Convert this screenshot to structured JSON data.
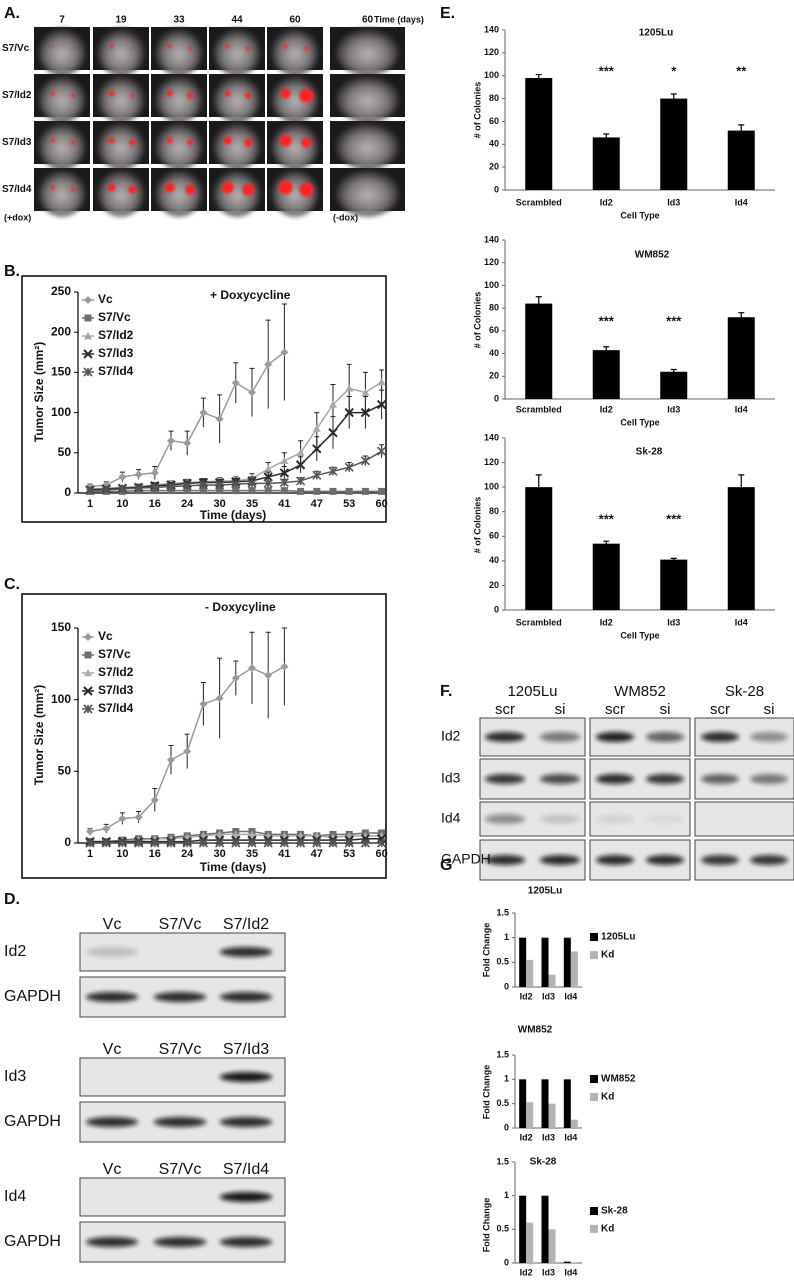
{
  "figure": {
    "panel_labels": [
      "A.",
      "B.",
      "C.",
      "D.",
      "E.",
      "F.",
      "G"
    ]
  },
  "panel_a": {
    "days": [
      "7",
      "19",
      "33",
      "44",
      "60",
      "60"
    ],
    "time_label": "Time (days)",
    "rows": [
      "S7/Vc",
      "S7/Id2",
      "S7/Id3",
      "S7/Id4"
    ],
    "plus_dox": "(+dox)",
    "minus_dox": "(-dox)"
  },
  "chart_data": [
    {
      "type": "line",
      "title": "+ Doxycycline",
      "x_label": "Time (days)",
      "y_label": "Tumor Size (mm²)",
      "categories": [
        "1",
        null,
        "10",
        null,
        "16",
        null,
        "24",
        null,
        "30",
        null,
        "35",
        null,
        "41",
        null,
        "47",
        null,
        "53",
        null,
        "60"
      ],
      "ylim": [
        0,
        250
      ],
      "yticks": [
        0,
        50,
        100,
        150,
        200,
        250
      ],
      "series": [
        {
          "name": "Vc",
          "color": "#9a9a9a",
          "marker": "diamond",
          "values": [
            8,
            10,
            20,
            23,
            25,
            65,
            62,
            100,
            92,
            137,
            125,
            160,
            175,
            null,
            null,
            null,
            null,
            null,
            null
          ],
          "errors": [
            3,
            4,
            6,
            6,
            8,
            12,
            15,
            18,
            30,
            25,
            30,
            55,
            60,
            null,
            null,
            null,
            null,
            null,
            null
          ]
        },
        {
          "name": "S7/Vc",
          "color": "#6e6e6e",
          "marker": "square",
          "values": [
            2,
            2,
            2,
            3,
            3,
            3,
            3,
            3,
            3,
            3,
            3,
            3,
            3,
            2,
            2,
            2,
            2,
            2,
            2
          ]
        },
        {
          "name": "S7/Id2",
          "color": "#a8a8a8",
          "marker": "triangle",
          "values": [
            5,
            6,
            7,
            8,
            10,
            12,
            13,
            14,
            15,
            15,
            18,
            30,
            40,
            50,
            80,
            110,
            130,
            125,
            138
          ],
          "errors": [
            2,
            2,
            2,
            3,
            3,
            3,
            4,
            4,
            4,
            5,
            6,
            8,
            10,
            15,
            20,
            25,
            30,
            25,
            15
          ]
        },
        {
          "name": "S7/Id3",
          "color": "#2b2b2b",
          "marker": "x",
          "values": [
            4,
            5,
            6,
            7,
            9,
            10,
            12,
            13,
            13,
            14,
            15,
            20,
            25,
            35,
            55,
            75,
            100,
            100,
            110
          ],
          "errors": [
            2,
            2,
            2,
            3,
            3,
            3,
            3,
            4,
            4,
            4,
            5,
            6,
            8,
            10,
            15,
            20,
            20,
            20,
            18
          ]
        },
        {
          "name": "S7/Id4",
          "color": "#555555",
          "marker": "asterisk",
          "values": [
            3,
            4,
            5,
            6,
            7,
            8,
            9,
            10,
            10,
            11,
            12,
            12,
            13,
            15,
            22,
            27,
            32,
            40,
            52
          ],
          "errors": [
            1,
            1,
            2,
            2,
            2,
            2,
            3,
            3,
            3,
            3,
            3,
            3,
            4,
            4,
            5,
            5,
            6,
            6,
            8
          ]
        }
      ]
    },
    {
      "type": "line",
      "title": "- Doxycyline",
      "x_label": "Time (days)",
      "y_label": "Tumor Size (mm²)",
      "categories": [
        "1",
        null,
        "10",
        null,
        "16",
        null,
        "24",
        null,
        "30",
        null,
        "35",
        null,
        "41",
        null,
        "47",
        null,
        "53",
        null,
        "60"
      ],
      "ylim": [
        0,
        150
      ],
      "yticks": [
        0,
        50,
        100,
        150
      ],
      "series": [
        {
          "name": "Vc",
          "color": "#9a9a9a",
          "marker": "diamond",
          "values": [
            8,
            10,
            17,
            18,
            30,
            58,
            64,
            97,
            101,
            115,
            122,
            117,
            123,
            null,
            null,
            null,
            null,
            null,
            null
          ],
          "errors": [
            2,
            3,
            4,
            4,
            8,
            10,
            12,
            15,
            28,
            12,
            25,
            30,
            27,
            null,
            null,
            null,
            null,
            null,
            null
          ]
        },
        {
          "name": "S7/Vc",
          "color": "#6e6e6e",
          "marker": "square",
          "values": [
            1,
            1,
            2,
            3,
            3,
            4,
            5,
            6,
            7,
            8,
            8,
            6,
            6,
            6,
            5,
            6,
            6,
            7,
            7
          ]
        },
        {
          "name": "S7/Id2",
          "color": "#a8a8a8",
          "marker": "triangle",
          "values": [
            0,
            1,
            1,
            2,
            3,
            3,
            4,
            5,
            6,
            6,
            6,
            5,
            5,
            5,
            5,
            4,
            5,
            5,
            5
          ]
        },
        {
          "name": "S7/Id3",
          "color": "#2b2b2b",
          "marker": "x",
          "values": [
            1,
            1,
            1,
            1,
            1,
            1,
            1,
            2,
            2,
            2,
            2,
            2,
            2,
            2,
            2,
            2,
            2,
            3,
            3
          ]
        },
        {
          "name": "S7/Id4",
          "color": "#555555",
          "marker": "asterisk",
          "values": [
            0,
            0,
            0,
            0,
            0,
            0,
            0,
            0,
            0,
            0,
            0,
            0,
            0,
            0,
            0,
            0,
            0,
            0,
            0
          ]
        }
      ]
    },
    {
      "type": "bar",
      "title": "1205Lu",
      "x_label": "Cell Type",
      "y_label": "# of Colonies",
      "categories": [
        "Scrambled",
        "Id2",
        "Id3",
        "Id4"
      ],
      "values": [
        98,
        46,
        80,
        52
      ],
      "errors": [
        3,
        3,
        4,
        5
      ],
      "annotations": [
        null,
        "***",
        "*",
        "**"
      ],
      "color": "#000000",
      "ylim": [
        0,
        140
      ],
      "yticks": [
        0,
        20,
        40,
        60,
        80,
        100,
        120,
        140
      ]
    },
    {
      "type": "bar",
      "title": "WM852",
      "x_label": "Cell Type",
      "y_label": "# of Colonies",
      "categories": [
        "Scrambled",
        "Id2",
        "Id3",
        "Id4"
      ],
      "values": [
        84,
        43,
        24,
        72
      ],
      "errors": [
        6,
        3,
        2,
        4
      ],
      "annotations": [
        null,
        "***",
        "***",
        null
      ],
      "color": "#000000",
      "ylim": [
        0,
        140
      ],
      "yticks": [
        0,
        20,
        40,
        60,
        80,
        100,
        120,
        140
      ]
    },
    {
      "type": "bar",
      "title": "Sk-28",
      "x_label": "Cell Type",
      "y_label": "# of Colonies",
      "categories": [
        "Scrambled",
        "Id2",
        "Id3",
        "Id4"
      ],
      "values": [
        100,
        54,
        41,
        100
      ],
      "errors": [
        10,
        2,
        1,
        10
      ],
      "annotations": [
        null,
        "***",
        "***",
        null
      ],
      "color": "#000000",
      "ylim": [
        0,
        140
      ],
      "yticks": [
        0,
        20,
        40,
        60,
        80,
        100,
        120,
        140
      ]
    },
    {
      "type": "bar",
      "title": "1205Lu",
      "y_label": "Fold Change",
      "categories": [
        "Id2",
        "Id3",
        "Id4"
      ],
      "series": [
        {
          "name": "1205Lu",
          "color": "#000000",
          "values": [
            1,
            1,
            1
          ]
        },
        {
          "name": "Kd",
          "color": "#b3b3b3",
          "values": [
            0.55,
            0.25,
            0.72
          ]
        }
      ],
      "ylim": [
        0,
        1.5
      ],
      "yticks": [
        0,
        0.5,
        1,
        1.5
      ]
    },
    {
      "type": "bar",
      "title": "WM852",
      "y_label": "Fold Change",
      "categories": [
        "Id2",
        "Id3",
        "Id4"
      ],
      "series": [
        {
          "name": "WM852",
          "color": "#000000",
          "values": [
            1,
            1,
            1
          ]
        },
        {
          "name": "Kd",
          "color": "#b3b3b3",
          "values": [
            0.53,
            0.5,
            0.17
          ]
        }
      ],
      "ylim": [
        0,
        1.5
      ],
      "yticks": [
        0,
        0.5,
        1,
        1.5
      ]
    },
    {
      "type": "bar",
      "title": "Sk-28",
      "y_label": "Fold Change",
      "categories": [
        "Id2",
        "Id3",
        "Id4"
      ],
      "series": [
        {
          "name": "Sk-28",
          "color": "#000000",
          "values": [
            1,
            1,
            0.02
          ]
        },
        {
          "name": "Kd",
          "color": "#b3b3b3",
          "values": [
            0.6,
            0.5,
            0.01
          ]
        }
      ],
      "ylim": [
        0,
        1.5
      ],
      "yticks": [
        0,
        0.5,
        1,
        1.5
      ]
    }
  ],
  "panel_d": {
    "blots": [
      {
        "lanes": [
          "Vc",
          "S7/Vc",
          "S7/Id2"
        ],
        "rows": [
          "Id2",
          "GAPDH"
        ]
      },
      {
        "lanes": [
          "Vc",
          "S7/Vc",
          "S7/Id3"
        ],
        "rows": [
          "Id3",
          "GAPDH"
        ]
      },
      {
        "lanes": [
          "Vc",
          "S7/Vc",
          "S7/Id4"
        ],
        "rows": [
          "Id4",
          "GAPDH"
        ]
      }
    ]
  },
  "panel_f": {
    "lines": [
      "1205Lu",
      "WM852",
      "Sk-28"
    ],
    "lanes": [
      "scr",
      "si"
    ],
    "rows": [
      "Id2",
      "Id3",
      "Id4",
      "GAPDH"
    ]
  }
}
